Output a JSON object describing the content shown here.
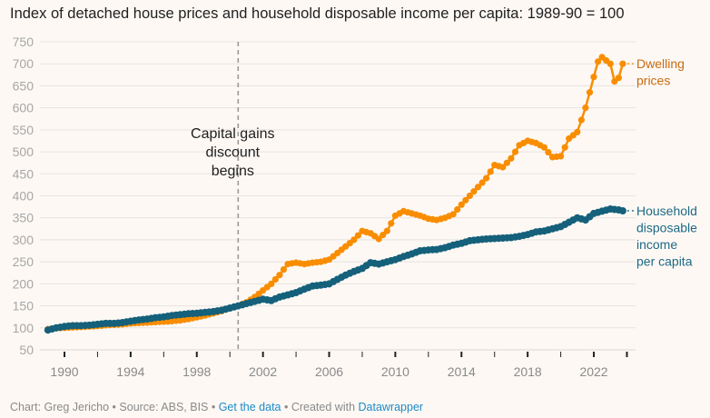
{
  "title": "Index of detached house prices and household disposable income per capita: 1989-90 = 100",
  "footer": {
    "chart_by": "Chart: Greg Jericho",
    "sep1": " • ",
    "source": "Source: ABS, BIS",
    "sep2": " • ",
    "get_data": "Get the data",
    "sep3": " • ",
    "created_with": "Created with ",
    "datawrapper": "Datawrapper"
  },
  "colors": {
    "dwelling": "#f98d00",
    "income": "#15607a",
    "dwelling_label": "#c76b11",
    "income_label": "#1d6a85",
    "grid": "#e6e3e0",
    "annotation_line": "#999999"
  },
  "chart_data": {
    "type": "line",
    "title": "Index of detached house prices and household disposable income per capita: 1989-90 = 100",
    "xlabel": "",
    "ylabel": "",
    "ylim": [
      50,
      750
    ],
    "xlim": [
      1988.5,
      2024.6
    ],
    "yticks": [
      50,
      100,
      150,
      200,
      250,
      300,
      350,
      400,
      450,
      500,
      550,
      600,
      650,
      700,
      750
    ],
    "xticks": [
      1990,
      1992,
      1994,
      1996,
      1998,
      2000,
      2002,
      2004,
      2006,
      2008,
      2010,
      2012,
      2014,
      2016,
      2018,
      2020,
      2022,
      2024
    ],
    "xtick_labels": [
      "1990",
      "1994",
      "1998",
      "2002",
      "2006",
      "2010",
      "2014",
      "2018",
      "2022"
    ],
    "grid": true,
    "annotations": [
      {
        "x": 2000.5,
        "type": "vertical-dashed-line",
        "text": [
          "Capital gains",
          "discount",
          "begins"
        ]
      }
    ],
    "series": [
      {
        "name": "Dwelling prices",
        "label_lines": [
          "Dwelling",
          "prices"
        ],
        "color": "#f98d00",
        "x": [
          1989.0,
          1989.5,
          1990.0,
          1990.5,
          1991.0,
          1991.5,
          1992.0,
          1992.5,
          1993.0,
          1993.5,
          1994.0,
          1994.5,
          1995.0,
          1995.5,
          1996.0,
          1996.5,
          1997.0,
          1997.5,
          1998.0,
          1998.5,
          1999.0,
          1999.5,
          2000.0,
          2000.5,
          2001.0,
          2001.5,
          2002.0,
          2002.5,
          2003.0,
          2003.5,
          2004.0,
          2004.5,
          2005.0,
          2005.5,
          2006.0,
          2006.5,
          2007.0,
          2007.5,
          2008.0,
          2008.5,
          2009.0,
          2009.5,
          2010.0,
          2010.5,
          2011.0,
          2011.5,
          2012.0,
          2012.5,
          2013.0,
          2013.5,
          2014.0,
          2014.5,
          2015.0,
          2015.5,
          2016.0,
          2016.5,
          2017.0,
          2017.5,
          2018.0,
          2018.5,
          2019.0,
          2019.5,
          2020.0,
          2020.5,
          2021.0,
          2021.5,
          2022.0,
          2022.25,
          2022.5,
          2023.0,
          2023.25,
          2023.5,
          2023.75
        ],
        "values": [
          97,
          99,
          100,
          101,
          102,
          103,
          104,
          106,
          107,
          108,
          110,
          111,
          112,
          113,
          114,
          115,
          117,
          120,
          124,
          128,
          133,
          138,
          145,
          150,
          158,
          170,
          185,
          200,
          220,
          245,
          248,
          245,
          248,
          250,
          255,
          270,
          285,
          300,
          320,
          315,
          302,
          320,
          355,
          365,
          360,
          355,
          348,
          345,
          350,
          358,
          380,
          400,
          420,
          440,
          470,
          465,
          485,
          515,
          525,
          520,
          510,
          488,
          490,
          530,
          545,
          600,
          670,
          705,
          715,
          700,
          660,
          668,
          700
        ]
      },
      {
        "name": "Household disposable income per capita",
        "label_lines": [
          "Household",
          "disposable",
          "income",
          "per capita"
        ],
        "color": "#15607a",
        "x": [
          1989.0,
          1989.5,
          1990.0,
          1990.5,
          1991.0,
          1991.5,
          1992.0,
          1992.5,
          1993.0,
          1993.5,
          1994.0,
          1994.5,
          1995.0,
          1995.5,
          1996.0,
          1996.5,
          1997.0,
          1997.5,
          1998.0,
          1998.5,
          1999.0,
          1999.5,
          2000.0,
          2000.5,
          2001.0,
          2001.5,
          2002.0,
          2002.5,
          2003.0,
          2003.5,
          2004.0,
          2004.5,
          2005.0,
          2005.5,
          2006.0,
          2006.5,
          2007.0,
          2007.5,
          2008.0,
          2008.5,
          2009.0,
          2009.5,
          2010.0,
          2010.5,
          2011.0,
          2011.5,
          2012.0,
          2012.5,
          2013.0,
          2013.5,
          2014.0,
          2014.5,
          2015.0,
          2015.5,
          2016.0,
          2016.5,
          2017.0,
          2017.5,
          2018.0,
          2018.5,
          2019.0,
          2019.5,
          2020.0,
          2020.5,
          2021.0,
          2021.5,
          2022.0,
          2022.5,
          2023.0,
          2023.5,
          2023.75
        ],
        "values": [
          95,
          100,
          103,
          105,
          105,
          106,
          108,
          110,
          110,
          112,
          115,
          118,
          120,
          123,
          125,
          128,
          130,
          132,
          133,
          135,
          137,
          140,
          145,
          150,
          155,
          160,
          165,
          162,
          170,
          175,
          180,
          188,
          195,
          197,
          200,
          210,
          220,
          228,
          235,
          248,
          245,
          250,
          255,
          262,
          268,
          275,
          277,
          278,
          282,
          288,
          292,
          298,
          300,
          302,
          303,
          304,
          305,
          308,
          312,
          318,
          320,
          325,
          330,
          340,
          350,
          345,
          360,
          365,
          370,
          368,
          366
        ]
      }
    ]
  }
}
